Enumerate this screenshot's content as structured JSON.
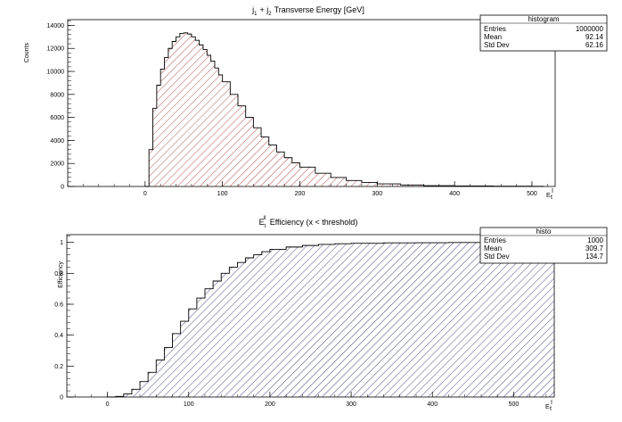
{
  "chart_data": [
    {
      "type": "histogram",
      "title_parts": {
        "j": "j",
        "sub1": "1",
        "plus": "+ j",
        "sub2": "2",
        "rest": "Transverse Energy [GeV]"
      },
      "ylabel": "Counts",
      "xlabel": {
        "main": "E",
        "sub": "t",
        "sup": "I"
      },
      "xlim": [
        -100,
        530
      ],
      "ylim": [
        0,
        14500
      ],
      "x_ticks": [
        0,
        100,
        200,
        300,
        400,
        500
      ],
      "y_ticks": [
        0,
        2000,
        4000,
        6000,
        8000,
        10000,
        12000,
        14000
      ],
      "x_tick_labels": [
        "0",
        "100",
        "200",
        "300",
        "400",
        "500"
      ],
      "y_tick_labels": [
        "0",
        "2000",
        "4000",
        "6000",
        "8000",
        "10000",
        "12000",
        "14000"
      ],
      "fill": {
        "color": "#a02020",
        "hatch": "diagonal"
      },
      "points": [
        [
          0,
          0
        ],
        [
          5,
          3200
        ],
        [
          10,
          6800
        ],
        [
          15,
          8800
        ],
        [
          20,
          10200
        ],
        [
          25,
          11200
        ],
        [
          30,
          12000
        ],
        [
          35,
          12600
        ],
        [
          40,
          13000
        ],
        [
          45,
          13300
        ],
        [
          50,
          13350
        ],
        [
          55,
          13250
        ],
        [
          60,
          13000
        ],
        [
          65,
          12700
        ],
        [
          70,
          12300
        ],
        [
          75,
          11900
        ],
        [
          80,
          11400
        ],
        [
          85,
          10900
        ],
        [
          90,
          10300
        ],
        [
          95,
          9700
        ],
        [
          100,
          9100
        ],
        [
          110,
          8000
        ],
        [
          120,
          7000
        ],
        [
          130,
          6000
        ],
        [
          140,
          5100
        ],
        [
          150,
          4300
        ],
        [
          160,
          3600
        ],
        [
          170,
          3000
        ],
        [
          180,
          2500
        ],
        [
          190,
          2050
        ],
        [
          200,
          1680
        ],
        [
          220,
          1150
        ],
        [
          240,
          780
        ],
        [
          260,
          520
        ],
        [
          280,
          350
        ],
        [
          300,
          230
        ],
        [
          330,
          130
        ],
        [
          360,
          75
        ],
        [
          400,
          40
        ],
        [
          450,
          20
        ],
        [
          500,
          10
        ],
        [
          515,
          5
        ]
      ],
      "stats": {
        "title": "histogram",
        "rows": [
          {
            "label": "Entries",
            "value": "1000000"
          },
          {
            "label": "Mean",
            "value": "92.14"
          },
          {
            "label": "Std Dev",
            "value": "62.16"
          }
        ]
      }
    },
    {
      "type": "histogram",
      "title_parts": {
        "e": "E",
        "sub": "t",
        "sup": "II",
        "rest": "Efficiency (x < threshold)"
      },
      "ylabel": "Efficiency",
      "xlabel": {
        "main": "E",
        "sub": "t",
        "sup": "I"
      },
      "xlim": [
        -50,
        550
      ],
      "ylim": [
        0,
        1.05
      ],
      "x_ticks": [
        0,
        100,
        200,
        300,
        400,
        500
      ],
      "y_ticks": [
        0,
        0.2,
        0.4,
        0.6,
        0.8,
        1
      ],
      "x_tick_labels": [
        "0",
        "100",
        "200",
        "300",
        "400",
        "500"
      ],
      "y_tick_labels": [
        "0",
        "0.2",
        "0.4",
        "0.6",
        "0.8",
        "1"
      ],
      "fill": {
        "color": "#1a1a5a",
        "hatch": "diagonal"
      },
      "points": [
        [
          0,
          0
        ],
        [
          10,
          0.004
        ],
        [
          20,
          0.02
        ],
        [
          30,
          0.05
        ],
        [
          40,
          0.1
        ],
        [
          50,
          0.16
        ],
        [
          60,
          0.24
        ],
        [
          70,
          0.32
        ],
        [
          80,
          0.41
        ],
        [
          90,
          0.49
        ],
        [
          100,
          0.57
        ],
        [
          110,
          0.64
        ],
        [
          120,
          0.7
        ],
        [
          130,
          0.75
        ],
        [
          140,
          0.8
        ],
        [
          150,
          0.84
        ],
        [
          160,
          0.87
        ],
        [
          170,
          0.9
        ],
        [
          180,
          0.92
        ],
        [
          190,
          0.94
        ],
        [
          200,
          0.955
        ],
        [
          220,
          0.97
        ],
        [
          240,
          0.98
        ],
        [
          260,
          0.987
        ],
        [
          280,
          0.991
        ],
        [
          300,
          0.994
        ],
        [
          340,
          0.997
        ],
        [
          380,
          0.998
        ],
        [
          420,
          0.999
        ],
        [
          460,
          1.0
        ],
        [
          500,
          1.0
        ],
        [
          550,
          1.0
        ]
      ],
      "stats": {
        "title": "histo",
        "rows": [
          {
            "label": "Entries",
            "value": "1000"
          },
          {
            "label": "Mean",
            "value": "309.7"
          },
          {
            "label": "Std Dev",
            "value": "134.7"
          }
        ]
      }
    }
  ]
}
